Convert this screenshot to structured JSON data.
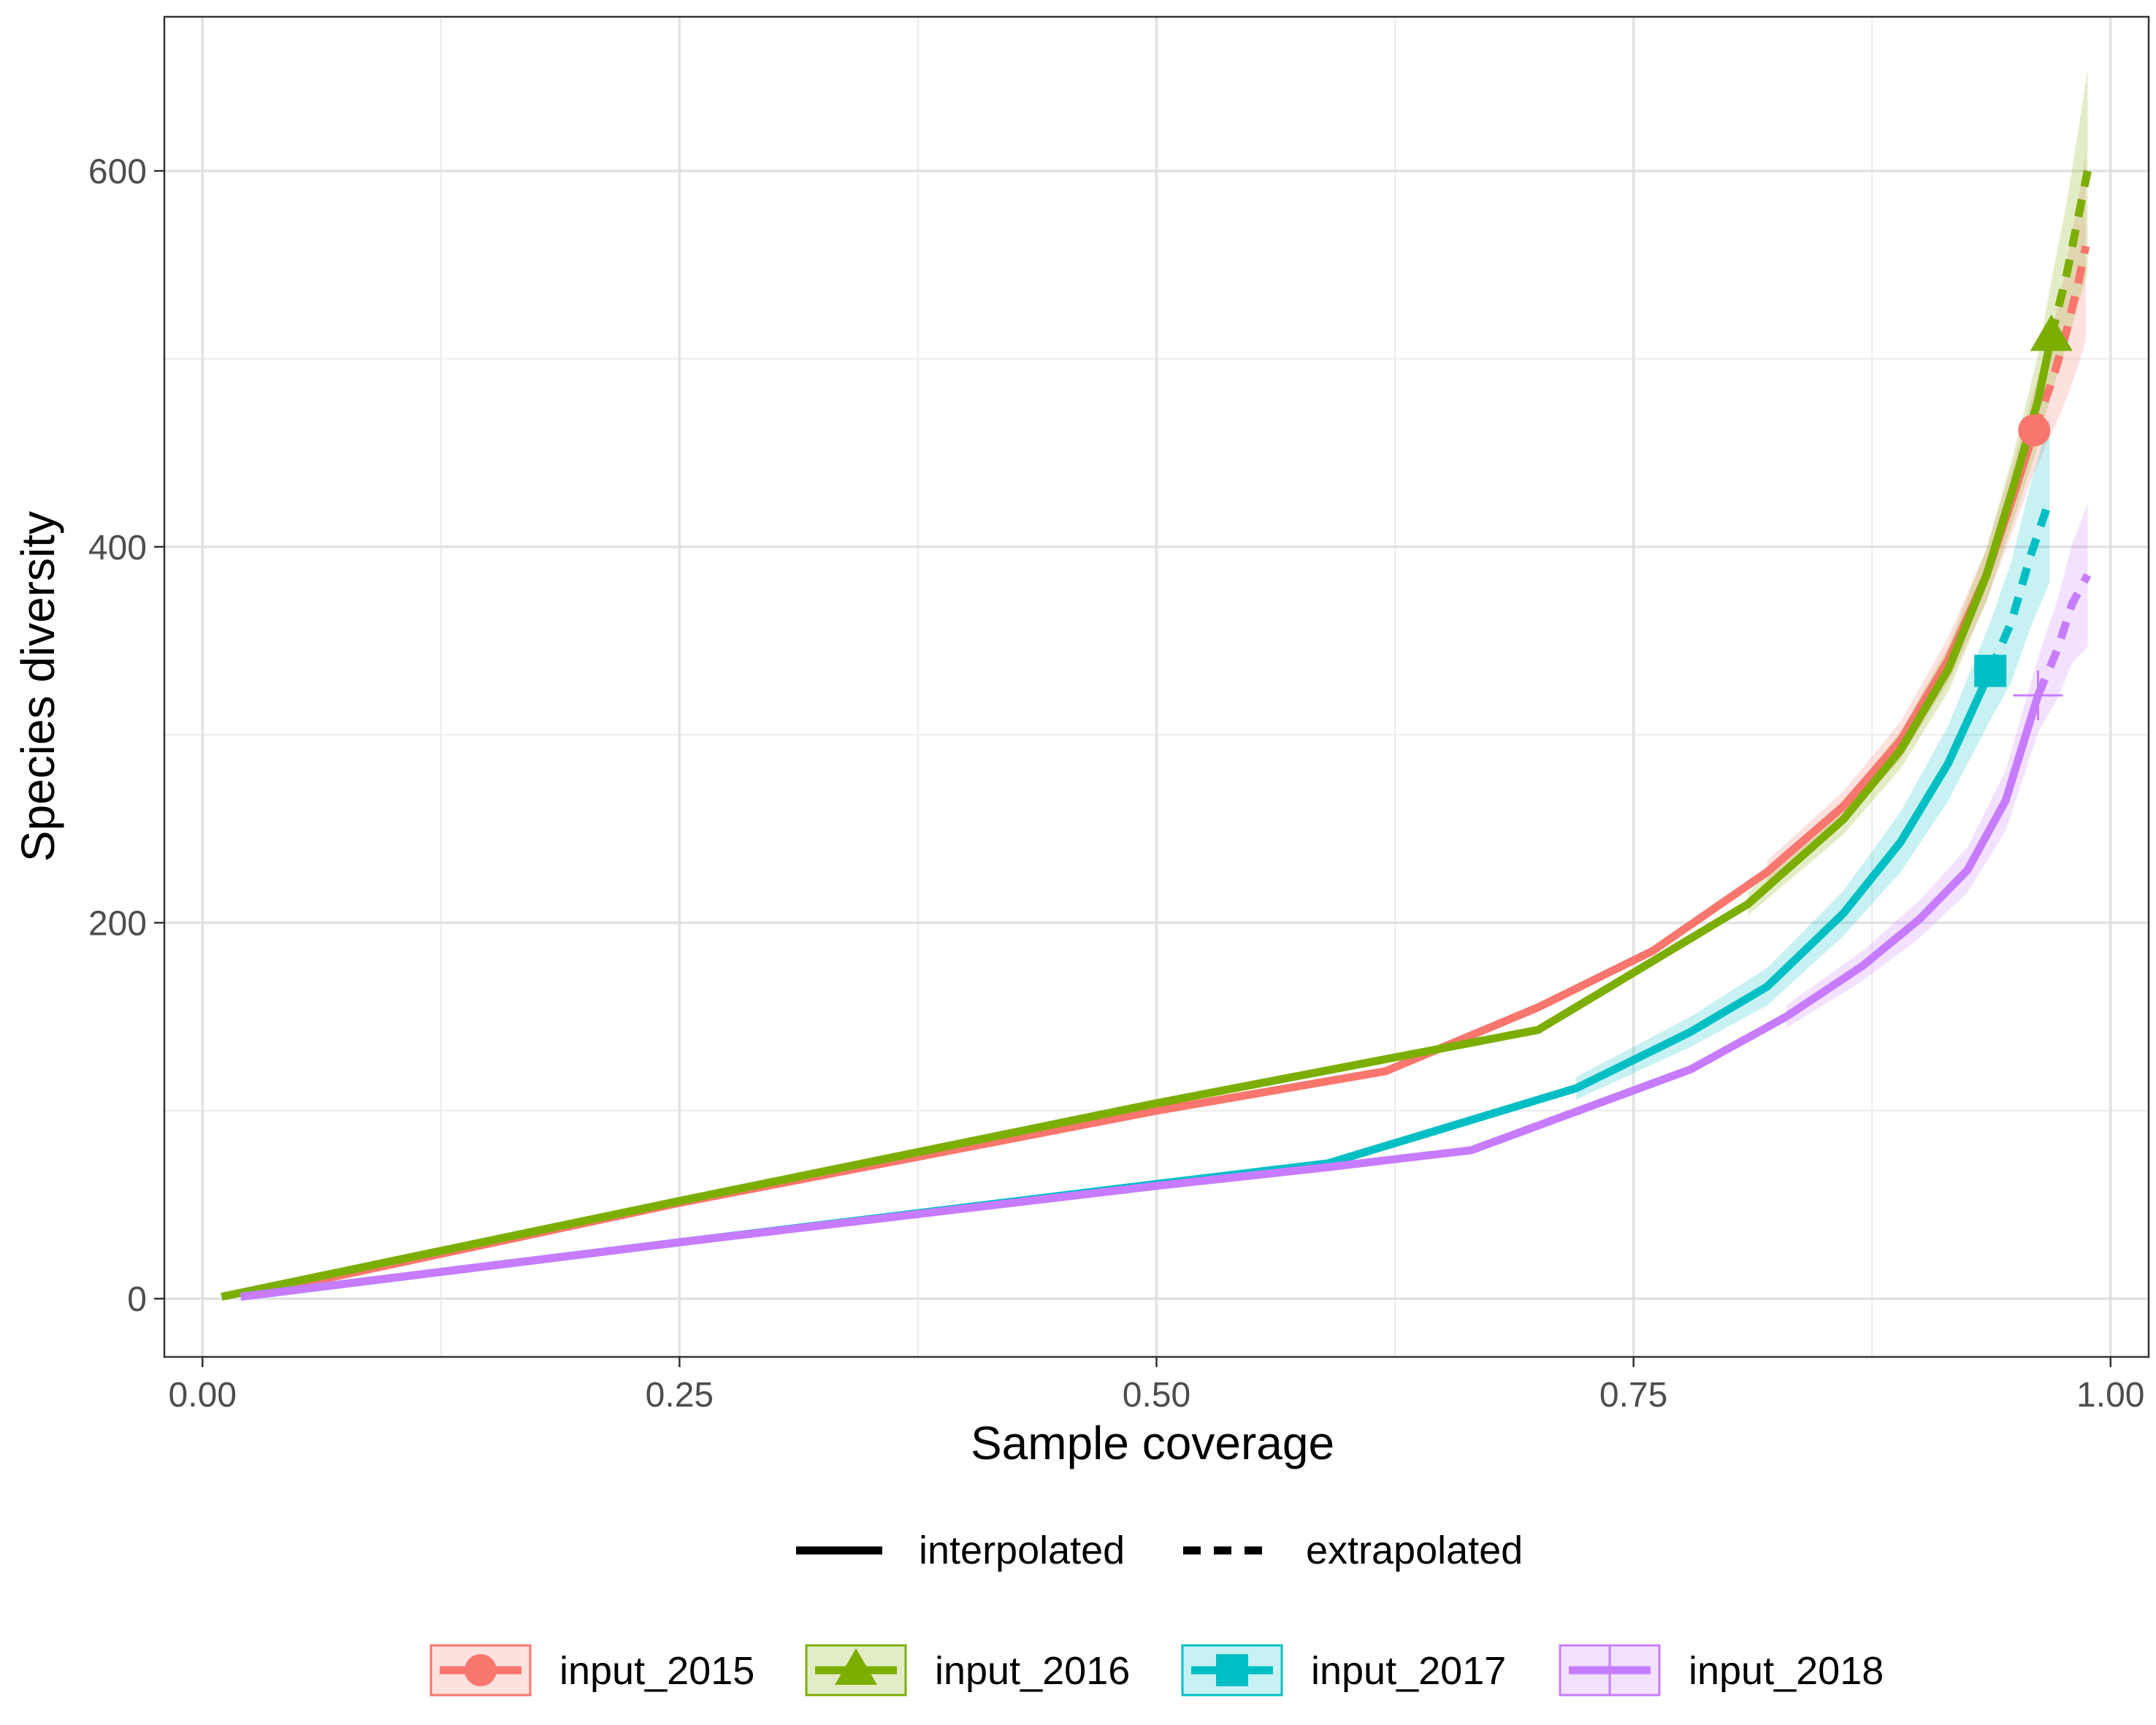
{
  "chart_data": {
    "type": "line",
    "title": "",
    "xlabel": "Sample coverage",
    "ylabel": "Species diversity",
    "xlim": [
      -0.02,
      1.02
    ],
    "ylim": [
      -31,
      682
    ],
    "grid": true,
    "x_ticks": [
      {
        "value": 0.0,
        "label": "0.00"
      },
      {
        "value": 0.25,
        "label": "0.25"
      },
      {
        "value": 0.5,
        "label": "0.50"
      },
      {
        "value": 0.75,
        "label": "0.75"
      },
      {
        "value": 1.0,
        "label": "1.00"
      }
    ],
    "y_ticks": [
      {
        "value": 0,
        "label": "0"
      },
      {
        "value": 200,
        "label": "200"
      },
      {
        "value": 400,
        "label": "400"
      },
      {
        "value": 600,
        "label": "600"
      }
    ],
    "linetype_legend": {
      "position": "bottom",
      "items": [
        "interpolated",
        "extrapolated"
      ]
    },
    "series_legend": {
      "position": "bottom"
    },
    "series": [
      {
        "name": "input_2015",
        "color": "#F8766D",
        "marker": "circle",
        "observed": [
          0.96,
          462
        ],
        "interpolated": [
          [
            0.02,
            1
          ],
          [
            0.25,
            51
          ],
          [
            0.5,
            100
          ],
          [
            0.62,
            121
          ],
          [
            0.7,
            155
          ],
          [
            0.76,
            185
          ],
          [
            0.82,
            227
          ],
          [
            0.86,
            262
          ],
          [
            0.89,
            297
          ],
          [
            0.915,
            340
          ],
          [
            0.935,
            385
          ],
          [
            0.95,
            430
          ],
          [
            0.96,
            462
          ]
        ],
        "extrapolated": [
          [
            0.96,
            462
          ],
          [
            0.97,
            490
          ],
          [
            0.977,
            515
          ],
          [
            0.983,
            540
          ],
          [
            0.987,
            560
          ]
        ],
        "band": [
          6,
          8,
          10,
          12,
          14,
          18,
          22,
          28,
          36,
          44,
          50
        ]
      },
      {
        "name": "input_2016",
        "color": "#7CAE00",
        "marker": "triangle",
        "observed": [
          0.969,
          512
        ],
        "interpolated": [
          [
            0.01,
            1
          ],
          [
            0.25,
            52
          ],
          [
            0.5,
            104
          ],
          [
            0.7,
            143
          ],
          [
            0.81,
            210
          ],
          [
            0.86,
            255
          ],
          [
            0.89,
            292
          ],
          [
            0.915,
            335
          ],
          [
            0.935,
            385
          ],
          [
            0.95,
            435
          ],
          [
            0.962,
            478
          ],
          [
            0.969,
            512
          ]
        ],
        "extrapolated": [
          [
            0.969,
            512
          ],
          [
            0.977,
            545
          ],
          [
            0.983,
            575
          ],
          [
            0.988,
            600
          ]
        ],
        "band": [
          6,
          8,
          10,
          12,
          14,
          18,
          24,
          30,
          38,
          46,
          54
        ]
      },
      {
        "name": "input_2017",
        "color": "#00BFC4",
        "marker": "square",
        "observed": [
          0.937,
          334
        ],
        "interpolated": [
          [
            0.02,
            1
          ],
          [
            0.25,
            30
          ],
          [
            0.5,
            61
          ],
          [
            0.59,
            72
          ],
          [
            0.72,
            112
          ],
          [
            0.78,
            142
          ],
          [
            0.82,
            166
          ],
          [
            0.86,
            205
          ],
          [
            0.89,
            243
          ],
          [
            0.915,
            285
          ],
          [
            0.937,
            334
          ]
        ],
        "extrapolated": [
          [
            0.937,
            334
          ],
          [
            0.948,
            360
          ],
          [
            0.958,
            395
          ],
          [
            0.968,
            425
          ]
        ],
        "band": [
          6,
          8,
          10,
          12,
          16,
          20,
          26,
          32,
          38,
          44
        ]
      },
      {
        "name": "input_2018",
        "color": "#C77CFF",
        "marker": "cross",
        "observed": [
          0.962,
          321
        ],
        "interpolated": [
          [
            0.02,
            1
          ],
          [
            0.25,
            30
          ],
          [
            0.5,
            60
          ],
          [
            0.59,
            70
          ],
          [
            0.665,
            79
          ],
          [
            0.78,
            122
          ],
          [
            0.83,
            150
          ],
          [
            0.87,
            177
          ],
          [
            0.9,
            202
          ],
          [
            0.925,
            228
          ],
          [
            0.945,
            265
          ],
          [
            0.962,
            321
          ]
        ],
        "extrapolated": [
          [
            0.962,
            321
          ],
          [
            0.972,
            345
          ],
          [
            0.98,
            370
          ],
          [
            0.988,
            385
          ]
        ],
        "band": [
          6,
          8,
          10,
          12,
          16,
          20,
          26,
          32,
          38
        ]
      }
    ]
  }
}
